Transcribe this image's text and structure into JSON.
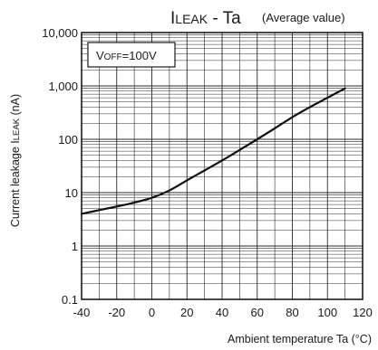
{
  "chart_data": {
    "type": "line",
    "title": {
      "main_prefix": "I",
      "main_sub": "LEAK",
      "main_suffix": " - Ta",
      "note": "(Average value)"
    },
    "xlabel": "Ambient temperature Ta (°C)",
    "ylabel": {
      "text": "Current leakage I",
      "sub": "LEAK",
      "unit": " (nA)"
    },
    "annotation": {
      "prefix": "V",
      "sub": "OFF",
      "suffix": "=100V"
    },
    "x_scale": "linear",
    "y_scale": "log",
    "xlim": [
      -40,
      120
    ],
    "ylim": [
      0.1,
      10000
    ],
    "x_ticks": [
      -40,
      -20,
      0,
      20,
      40,
      60,
      80,
      100,
      120
    ],
    "x_tick_labels": [
      "-40",
      "-20",
      "0",
      "20",
      "40",
      "60",
      "80",
      "100",
      "120"
    ],
    "y_ticks": [
      0.1,
      1,
      10,
      100,
      1000,
      10000
    ],
    "y_tick_labels": [
      "0.1",
      "1",
      "10",
      "100",
      "1,000",
      "10,000"
    ],
    "grid": true,
    "series": [
      {
        "x": [
          -40,
          -30,
          -20,
          -10,
          0,
          10,
          20,
          30,
          40,
          50,
          60,
          70,
          80,
          90,
          100,
          110
        ],
        "y": [
          4,
          4.7,
          5.5,
          6.5,
          8,
          11,
          17,
          26,
          40,
          63,
          100,
          160,
          260,
          400,
          600,
          900
        ]
      }
    ]
  }
}
